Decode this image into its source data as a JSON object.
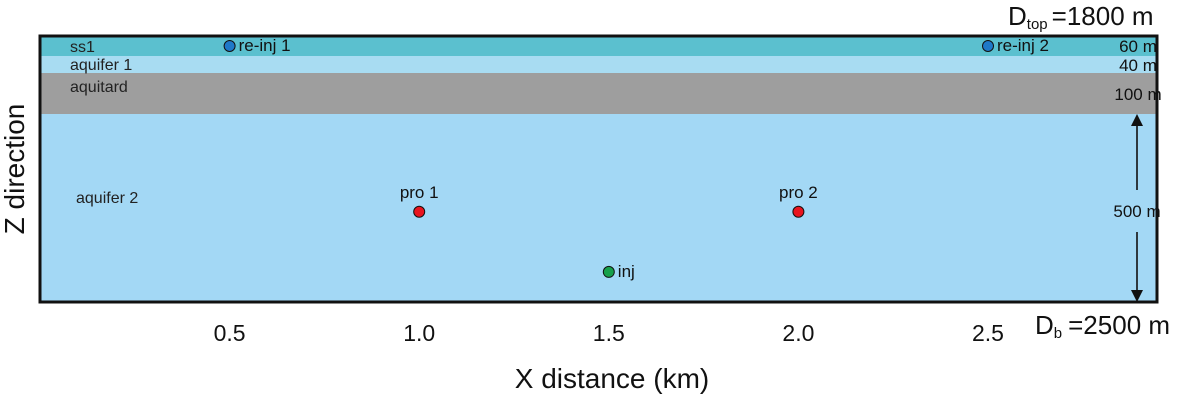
{
  "depth_labels": {
    "top_symbol": "D",
    "top_subscript": "top",
    "top_value": "=1800 m",
    "bottom_symbol": "D",
    "bottom_subscript": "b",
    "bottom_value": "=2500 m"
  },
  "axes": {
    "x_label": "X distance (km)",
    "y_label": "Z direction",
    "x_range_km": [
      0,
      2.9
    ],
    "x_ticks": [
      {
        "value": 0.5,
        "label": "0.5"
      },
      {
        "value": 1.0,
        "label": "1.0"
      },
      {
        "value": 1.5,
        "label": "1.5"
      },
      {
        "value": 2.0,
        "label": "2.0"
      },
      {
        "value": 2.5,
        "label": "2.5"
      }
    ]
  },
  "layers": [
    {
      "id": "ss1",
      "name": "ss1",
      "thickness_m": 60,
      "thickness_label": "60 m",
      "color": "#5bc0cf"
    },
    {
      "id": "aquifer-1",
      "name": "aquifer 1",
      "thickness_m": 40,
      "thickness_label": "40 m",
      "color": "#a8dcf2"
    },
    {
      "id": "aquitard",
      "name": "aquitard",
      "thickness_m": 100,
      "thickness_label": "100 m",
      "color": "#9e9e9e"
    },
    {
      "id": "aquifer-2",
      "name": "aquifer 2",
      "thickness_m": 500,
      "thickness_label": "500 m",
      "color": "#a3d8f5"
    }
  ],
  "wells": [
    {
      "id": "re-inj-1",
      "label": "re-inj 1",
      "x_km": 0.5,
      "depth_m": 1830,
      "color": "#1f78c8",
      "label_side": "right"
    },
    {
      "id": "re-inj-2",
      "label": "re-inj 2",
      "x_km": 2.5,
      "depth_m": 1830,
      "color": "#1f78c8",
      "label_side": "right"
    },
    {
      "id": "pro-1",
      "label": "pro 1",
      "x_km": 1.0,
      "depth_m": 2260,
      "color": "#e8141e",
      "label_side": "above"
    },
    {
      "id": "pro-2",
      "label": "pro 2",
      "x_km": 2.0,
      "depth_m": 2260,
      "color": "#e8141e",
      "label_side": "above"
    },
    {
      "id": "inj",
      "label": "inj",
      "x_km": 1.5,
      "depth_m": 2420,
      "color": "#16a04a",
      "label_side": "right"
    }
  ]
}
